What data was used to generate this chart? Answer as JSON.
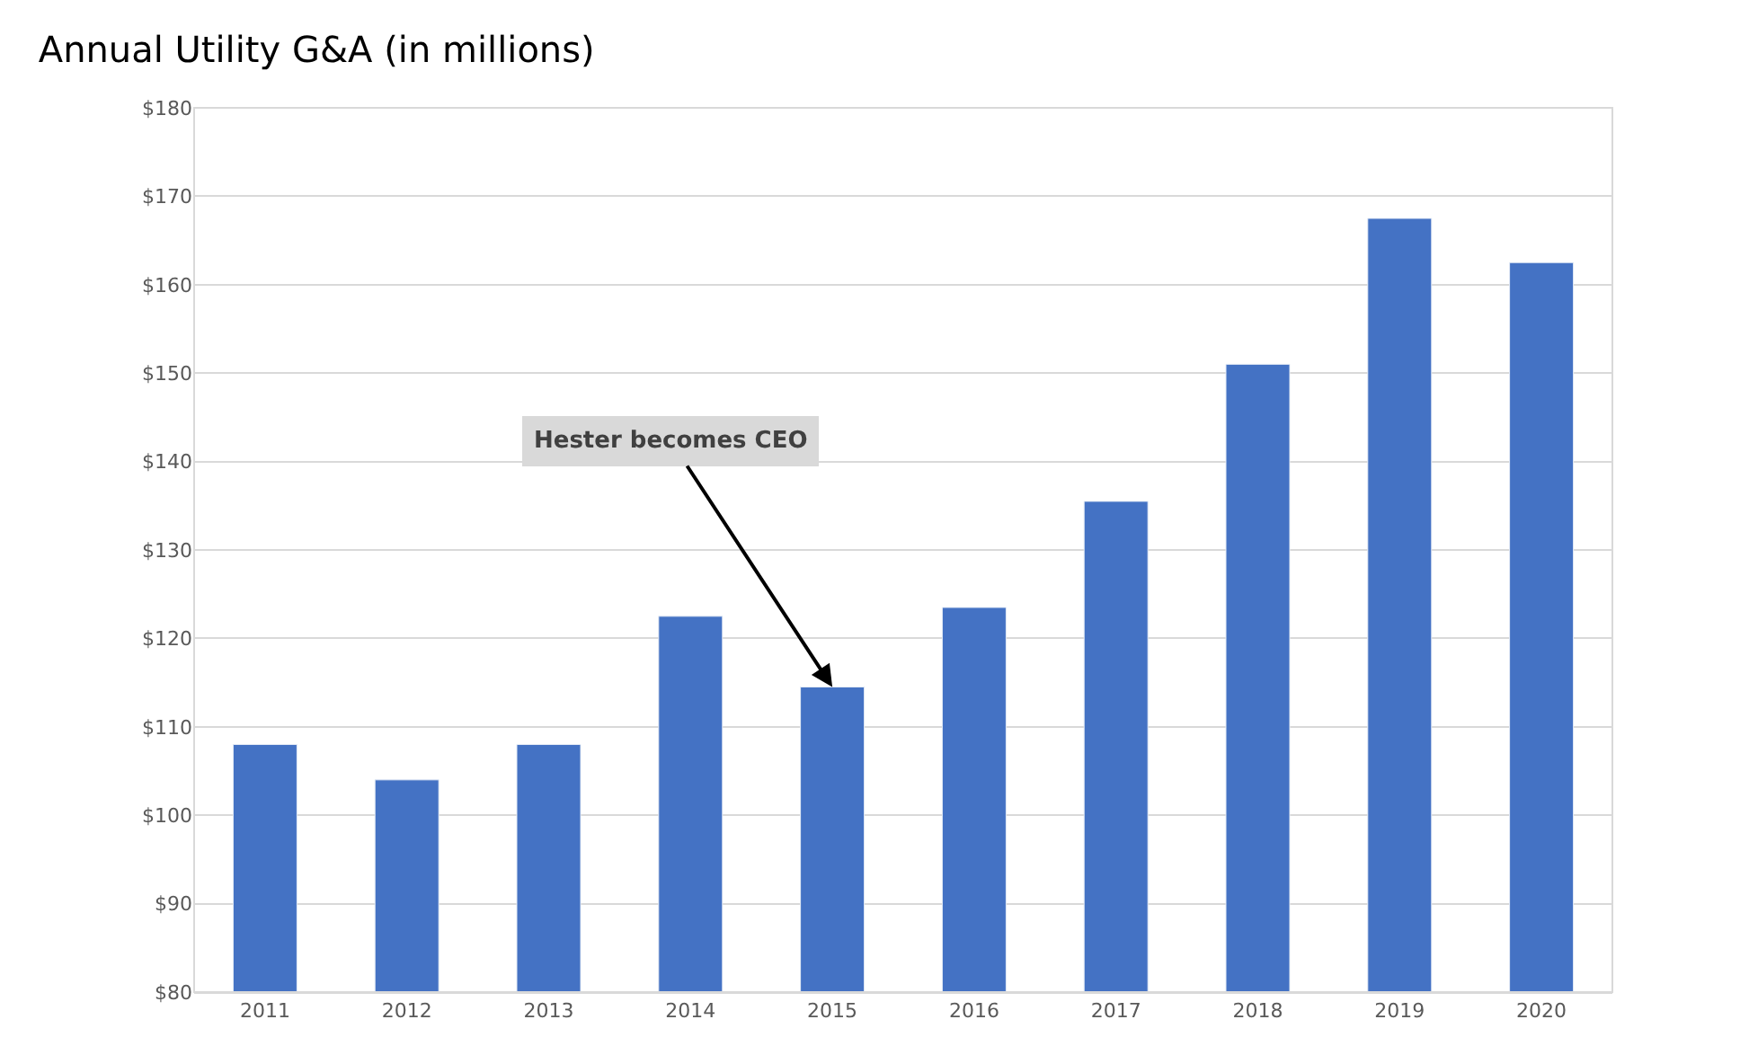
{
  "chart_data": {
    "type": "bar",
    "title": "Annual Utility G&A (in millions)",
    "categories": [
      "2011",
      "2012",
      "2013",
      "2014",
      "2015",
      "2016",
      "2017",
      "2018",
      "2019",
      "2020"
    ],
    "values": [
      108,
      104,
      108,
      122.5,
      114.5,
      123.5,
      135.5,
      151,
      167.5,
      162.5
    ],
    "color": "#4472c4",
    "ylim": [
      80,
      180
    ],
    "yticks": [
      {
        "value": 80,
        "label": "$80"
      },
      {
        "value": 90,
        "label": "$90"
      },
      {
        "value": 100,
        "label": "$100"
      },
      {
        "value": 110,
        "label": "$110"
      },
      {
        "value": 120,
        "label": "$120"
      },
      {
        "value": 130,
        "label": "$130"
      },
      {
        "value": 140,
        "label": "$140"
      },
      {
        "value": 150,
        "label": "$150"
      },
      {
        "value": 160,
        "label": "$160"
      },
      {
        "value": 170,
        "label": "$170"
      },
      {
        "value": 180,
        "label": "$180"
      }
    ],
    "grid": "y",
    "annotations": [
      {
        "text": "Hester becomes CEO",
        "x": "2015",
        "y": 114.5
      }
    ]
  }
}
